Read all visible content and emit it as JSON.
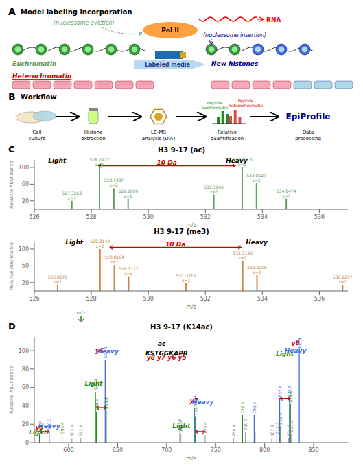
{
  "chart_data": [
    {
      "type": "diagram",
      "panel": "A",
      "title": "Model labeling incorporation",
      "texts": [
        {
          "text": "Pol II",
          "color": "black"
        },
        {
          "text": "RNA",
          "color": "red"
        },
        {
          "text": "(nucleosome eviction)",
          "color": "#5F9E5F"
        },
        {
          "text": "(nucleosome insertion)",
          "color": "#00008B"
        },
        {
          "text": "Euchromatin",
          "color": "#5F9E5F"
        },
        {
          "text": "New histones",
          "color": "#00008B"
        },
        {
          "text": "Labeled media",
          "color": "#1E3A8A"
        },
        {
          "text": "Heterochromatin",
          "color": "#CC0000"
        }
      ]
    },
    {
      "type": "diagram",
      "panel": "B",
      "title": "Workflow",
      "steps": [
        "Cell\nculture",
        "Histone\nextraction",
        "LC-MS\nanalysis (DIA)",
        "Relative\nquantification",
        "Data\nprocessing"
      ],
      "texts": [
        {
          "text": "Peptide\neuchromatin",
          "color": "#228B22"
        },
        {
          "text": "Peptide\nheterochromatin",
          "color": "#CC0000"
        },
        {
          "text": "EpiProfile",
          "color": "#00008B"
        }
      ]
    },
    {
      "type": "stem",
      "panel": "C",
      "title": "H3 9-17 (ac)",
      "x_label": "m/z",
      "y_label": "Relative Abundance",
      "x": [
        527.3263,
        528.2972,
        528.7987,
        529.2999,
        532.306,
        533.3013,
        533.8027,
        534.8474
      ],
      "values": [
        20,
        100,
        50,
        25,
        35,
        100,
        62,
        25
      ],
      "labels": [
        "527.3263\nz=?",
        "528.2972\nz=2",
        "528.7987\nz=2",
        "529.2999\nz=2",
        "532.3060\nz=?",
        "533.3013\nz=2",
        "533.8027\nz=2",
        "534.8474\nz=?"
      ],
      "color": "#5F9E5F",
      "xlim": [
        526,
        537
      ],
      "xticks": [
        526,
        528,
        530,
        532,
        534,
        536
      ],
      "ylim": [
        0,
        118
      ],
      "yticks": [
        0,
        20,
        40,
        60,
        80,
        100
      ],
      "annotations": [
        {
          "text": "Light",
          "x": 526.8,
          "y": 112,
          "color": "black"
        },
        {
          "text": "Heavy",
          "x": 533.1,
          "y": 112,
          "color": "black"
        },
        {
          "text": "10 Da",
          "x": 530.65,
          "y": 106,
          "color": "#CC0000"
        }
      ],
      "arrows": [
        {
          "x1": 528.25,
          "x2": 533.05,
          "y": 104,
          "color": "#CC0000"
        }
      ]
    },
    {
      "type": "stem",
      "title": "H3 9-17 (me3)",
      "x_label": "m/z",
      "y_label": "Relative Abundance",
      "x": [
        526.827,
        528.3149,
        528.8164,
        529.3177,
        531.3319,
        533.319,
        533.8206,
        536.8257
      ],
      "values": [
        15,
        100,
        62,
        35,
        18,
        72,
        38,
        15
      ],
      "labels": [
        "526.8270\nz=?",
        "528.3149\nz=2",
        "528.8164\nz=2",
        "529.3177\nz=2",
        "531.3319\nz=2",
        "533.3190\nz=2",
        "533.8206\nz=2",
        "536.8257\nz=2"
      ],
      "color": "#C8874A",
      "xlim": [
        526,
        537
      ],
      "xticks": [
        526,
        528,
        530,
        532,
        534,
        536
      ],
      "ylim": [
        0,
        118
      ],
      "yticks": [
        0,
        20,
        40,
        60,
        80,
        100
      ],
      "annotations": [
        {
          "text": "Light",
          "x": 527.4,
          "y": 112,
          "color": "black"
        },
        {
          "text": "Heavy",
          "x": 533.8,
          "y": 112,
          "color": "black"
        },
        {
          "text": "10 Da",
          "x": 530.95,
          "y": 106,
          "color": "#CC0000"
        }
      ],
      "arrows": [
        {
          "x1": 528.65,
          "x2": 533.25,
          "y": 104,
          "color": "#CC0000"
        }
      ]
    },
    {
      "type": "stem",
      "panel": "D",
      "title": "H3 9-17 (K14ac)",
      "x_label": "m/z",
      "y_label": "Relative Abundance",
      "arrow_label": {
        "text": "m/z",
        "color": "#5F9E5F"
      },
      "x": [
        570.3,
        580.3,
        593.4,
        603.4,
        612.4,
        627.4,
        628.4,
        637.4,
        638.4,
        714.5,
        713.5,
        728.4,
        729.4,
        739.4,
        768.4,
        777.5,
        780.4,
        789.4,
        790.4,
        807.4,
        812.5,
        815.4,
        816.4,
        824.4,
        825.4,
        826.4,
        827.5,
        835.4
      ],
      "values": [
        10,
        12,
        8,
        5,
        5,
        55,
        33,
        90,
        35,
        10,
        12,
        37,
        28,
        8,
        5,
        30,
        12,
        30,
        12,
        5,
        8,
        48,
        18,
        5,
        48,
        42,
        10,
        100
      ],
      "colors": [
        "#228B22",
        "#4169E1",
        "#AAAAAA",
        "#AAAAAA",
        "#AAAAAA",
        "#228B22",
        "#228B22",
        "#4169E1",
        "#228B22",
        "#AAAAAA",
        "#AAAAAA",
        "#4169E1",
        "#228B22",
        "#AAAAAA",
        "#AAAAAA",
        "#228B22",
        "#AAAAAA",
        "#4169E1",
        "#AAAAAA",
        "#AAAAAA",
        "#AAAAAA",
        "#4169E1",
        "#228B22",
        "#AAAAAA",
        "#4169E1",
        "#228B22",
        "#AAAAAA",
        "#4169E1"
      ],
      "labels": [
        "570.3",
        "580.3",
        "593.4",
        "603.4",
        "612.4",
        "627.4",
        "628.4",
        "637.4",
        "638.4",
        "714.5",
        "713.5",
        "728.4",
        "729.4",
        "739.4",
        "768.4",
        "777.5",
        "780.4",
        "789.4",
        null,
        "807.4",
        "812.5",
        "815.4",
        "816.4",
        "824.4",
        "825.4",
        "826.4",
        "827.5",
        "835.4"
      ],
      "label_colors": [
        "#228B22",
        "#4169E1",
        "#228B22",
        "#888888",
        "#888888",
        "#228B22",
        "#228B22",
        "#4169E1",
        "#228B22",
        "#228B22",
        "#4169E1",
        "#4169E1",
        "#228B22",
        "#888888",
        "#888888",
        "#228B22",
        "#888888",
        "#4169E1",
        null,
        "#888888",
        "#888888",
        "#4169E1",
        "#228B22",
        "#888888",
        "#4169E1",
        "#228B22",
        "#888888",
        "#4169E1"
      ],
      "xlim": [
        565,
        885
      ],
      "xticks": [
        600,
        650,
        700,
        750,
        800,
        850
      ],
      "ylim": [
        0,
        115
      ],
      "yticks": [
        0,
        20,
        40,
        60,
        80,
        100
      ],
      "annotations": [
        {
          "text": "y5",
          "x": 570.3,
          "y": 14,
          "color": "#CC0000"
        },
        {
          "text": "Light",
          "x": 568.5,
          "y": 9,
          "color": "#228B22"
        },
        {
          "text": "Heavy",
          "x": 580.3,
          "y": 16,
          "color": "#4169E1"
        },
        {
          "text": "y6",
          "x": 631.5,
          "y": 98,
          "color": "#CC0000"
        },
        {
          "text": "Light",
          "x": 625.5,
          "y": 62,
          "color": "#228B22"
        },
        {
          "text": "Heavy",
          "x": 640.0,
          "y": 97,
          "color": "#4169E1"
        },
        {
          "text": "y7",
          "x": 728.0,
          "y": 43,
          "color": "#CC0000"
        },
        {
          "text": "Light",
          "x": 715.0,
          "y": 16,
          "color": "#228B22"
        },
        {
          "text": "Heavy",
          "x": 737.0,
          "y": 42,
          "color": "#4169E1"
        },
        {
          "text": "y8",
          "x": 831.5,
          "y": 106,
          "color": "#CC0000"
        },
        {
          "text": "Heavy",
          "x": 831.5,
          "y": 98,
          "color": "#4169E1"
        },
        {
          "text": "Light",
          "x": 820.5,
          "y": 94,
          "color": "#228B22"
        },
        {
          "text": "KSTGGKAPR",
          "x": 700,
          "y": 95,
          "color": "black"
        },
        {
          "text": "ac",
          "x": 695,
          "y": 105,
          "color": "black"
        },
        {
          "text": "y8 y7 y6 y5",
          "x": 700,
          "y": 90,
          "color": "#CC0000"
        }
      ],
      "arrows": [
        {
          "x1": 570.3,
          "x2": 580.3,
          "y": 12,
          "color": "#CC0000"
        },
        {
          "x1": 628.4,
          "x2": 638.4,
          "y": 38,
          "color": "#CC0000"
        },
        {
          "x1": 729.4,
          "x2": 739.4,
          "y": 12,
          "color": "#CC0000"
        },
        {
          "x1": 815.4,
          "x2": 826.4,
          "y": 48,
          "color": "#CC0000"
        }
      ]
    }
  ]
}
